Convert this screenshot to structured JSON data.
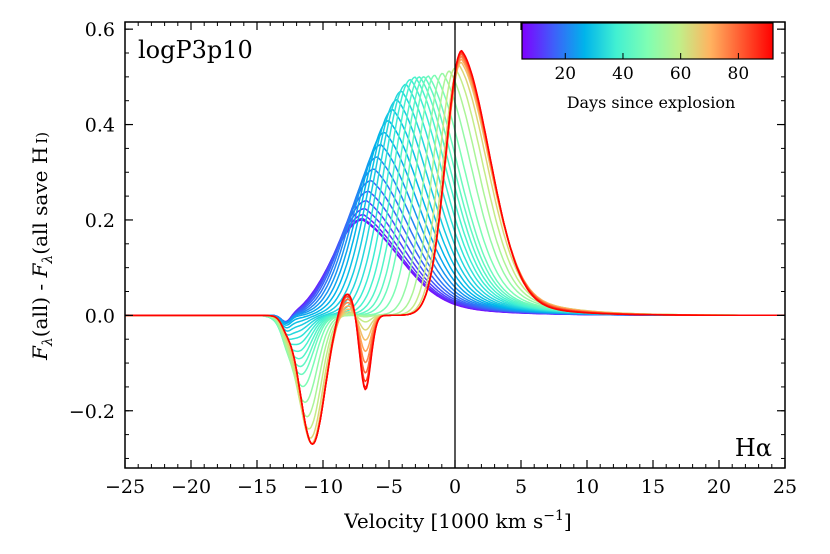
{
  "chart_data": {
    "type": "line",
    "title": "",
    "panel_label": "logP3p10",
    "line_label": "Hα",
    "xlabel": "Velocity [1000 km s−1]",
    "xlabel_parts": {
      "main": "Velocity [1000 km s",
      "sup": "−1",
      "end": "]"
    },
    "ylabel": "Fλ(all) - Fλ(all save H I)",
    "ylabel_parts": {
      "f1": "F",
      "sub1": "λ",
      "mid": "(all) - ",
      "f2": "F",
      "sub2": "λ",
      "end": "(all save H",
      "ion": "I)"
    },
    "xlim": [
      -25,
      25
    ],
    "ylim": [
      -0.32,
      0.615
    ],
    "xticks": [
      -25,
      -20,
      -15,
      -10,
      -5,
      0,
      5,
      10,
      15,
      20,
      25
    ],
    "xtick_labels": [
      "−25",
      "−20",
      "−15",
      "−10",
      "−5",
      "0",
      "5",
      "10",
      "15",
      "20",
      "25"
    ],
    "yticks": [
      -0.2,
      0.0,
      0.2,
      0.4,
      0.6
    ],
    "ytick_labels": [
      "−0.2",
      "0.0",
      "0.2",
      "0.4",
      "0.6"
    ],
    "vertical_line_x": 0,
    "colorbar": {
      "label": "Days since explosion",
      "range": [
        5,
        92
      ],
      "ticks": [
        20,
        40,
        60,
        80
      ],
      "tick_labels": [
        "20",
        "40",
        "60",
        "80"
      ],
      "colormap": [
        "#7f00ff",
        "#3f5efa",
        "#00b4eb",
        "#41f0d2",
        "#7ffeb3",
        "#c0f08a",
        "#ffb360",
        "#ff5930",
        "#ff0000"
      ]
    },
    "series_days": [
      5,
      7,
      9,
      11,
      13,
      15,
      17,
      19,
      21,
      23,
      25,
      27,
      29,
      31,
      33,
      35,
      37,
      39,
      41,
      43,
      45,
      48,
      52,
      56,
      60,
      64,
      68,
      72,
      76,
      80,
      84,
      88,
      92
    ],
    "series_note": "Each series is an H-alpha difference profile; curves evolve from low broad (early, purple) to absorption trough near -11 and emission peak near 0 (late, red)."
  }
}
